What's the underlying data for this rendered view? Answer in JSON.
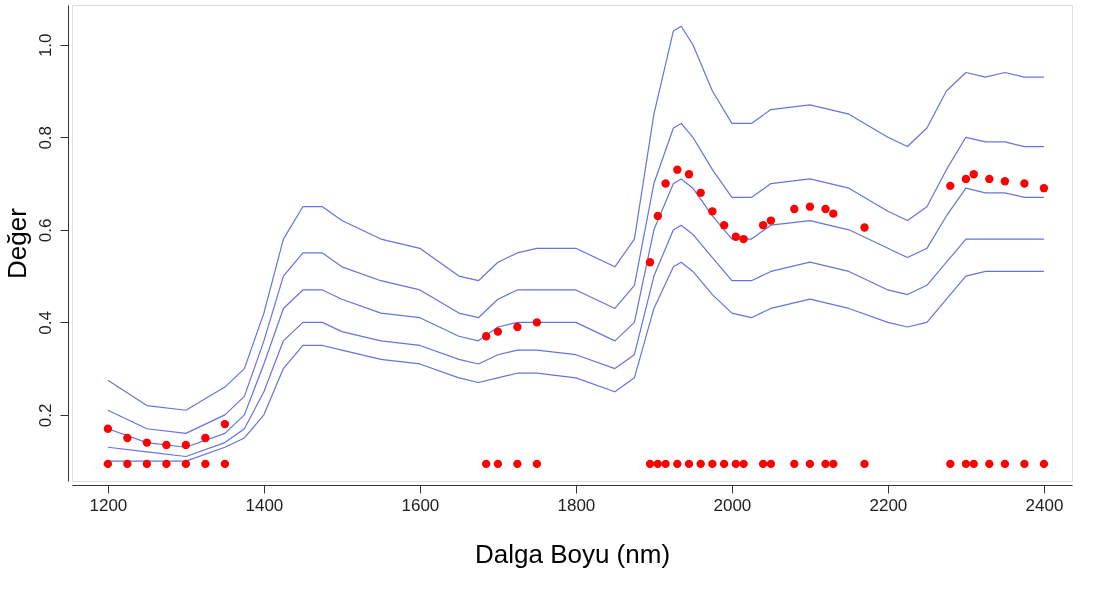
{
  "chart_data": {
    "type": "line",
    "xlabel": "Dalga Boyu (nm)",
    "ylabel": "Değer",
    "xlim": [
      1154,
      2436
    ],
    "ylim": [
      0.057,
      1.086
    ],
    "xticks": [
      1200,
      1400,
      1600,
      1800,
      2000,
      2200,
      2400
    ],
    "yticks": [
      0.2,
      0.4,
      0.6,
      0.8,
      {
        "value": 1.0,
        "label": "1.0"
      }
    ],
    "grid": false,
    "x": [
      1200,
      1250,
      1300,
      1350,
      1375,
      1400,
      1425,
      1450,
      1475,
      1500,
      1550,
      1600,
      1650,
      1675,
      1700,
      1725,
      1750,
      1800,
      1850,
      1875,
      1900,
      1925,
      1935,
      1950,
      1975,
      2000,
      2025,
      2050,
      2100,
      2150,
      2200,
      2225,
      2250,
      2275,
      2300,
      2325,
      2350,
      2375,
      2400
    ],
    "series": [
      {
        "color": "#4a5bd8",
        "values": [
          0.275,
          0.22,
          0.21,
          0.26,
          0.3,
          0.42,
          0.58,
          0.65,
          0.65,
          0.62,
          0.58,
          0.56,
          0.5,
          0.49,
          0.53,
          0.55,
          0.56,
          0.56,
          0.52,
          0.58,
          0.85,
          1.03,
          1.04,
          1.0,
          0.9,
          0.83,
          0.83,
          0.86,
          0.87,
          0.85,
          0.8,
          0.78,
          0.82,
          0.9,
          0.94,
          0.93,
          0.94,
          0.93,
          0.93
        ]
      },
      {
        "color": "#4a5bd8",
        "values": [
          0.21,
          0.17,
          0.16,
          0.2,
          0.24,
          0.36,
          0.5,
          0.55,
          0.55,
          0.52,
          0.49,
          0.47,
          0.42,
          0.41,
          0.45,
          0.47,
          0.47,
          0.47,
          0.43,
          0.48,
          0.7,
          0.82,
          0.83,
          0.8,
          0.73,
          0.67,
          0.67,
          0.7,
          0.71,
          0.69,
          0.64,
          0.62,
          0.65,
          0.73,
          0.8,
          0.79,
          0.79,
          0.78,
          0.78
        ]
      },
      {
        "color": "#4a5bd8",
        "values": [
          0.17,
          0.14,
          0.13,
          0.16,
          0.2,
          0.31,
          0.43,
          0.47,
          0.47,
          0.45,
          0.42,
          0.41,
          0.37,
          0.36,
          0.39,
          0.4,
          0.4,
          0.4,
          0.36,
          0.4,
          0.6,
          0.7,
          0.71,
          0.69,
          0.63,
          0.58,
          0.58,
          0.61,
          0.62,
          0.6,
          0.56,
          0.54,
          0.56,
          0.63,
          0.69,
          0.68,
          0.68,
          0.67,
          0.67
        ]
      },
      {
        "color": "#4a5bd8",
        "values": [
          0.13,
          0.12,
          0.11,
          0.14,
          0.17,
          0.25,
          0.36,
          0.4,
          0.4,
          0.38,
          0.36,
          0.35,
          0.32,
          0.31,
          0.33,
          0.34,
          0.34,
          0.33,
          0.3,
          0.33,
          0.5,
          0.6,
          0.61,
          0.59,
          0.54,
          0.49,
          0.49,
          0.51,
          0.53,
          0.51,
          0.47,
          0.46,
          0.48,
          0.53,
          0.58,
          0.58,
          0.58,
          0.58,
          0.58
        ]
      },
      {
        "color": "#4a5bd8",
        "values": [
          0.1,
          0.1,
          0.1,
          0.13,
          0.15,
          0.2,
          0.3,
          0.35,
          0.35,
          0.34,
          0.32,
          0.31,
          0.28,
          0.27,
          0.28,
          0.29,
          0.29,
          0.28,
          0.25,
          0.28,
          0.43,
          0.52,
          0.53,
          0.51,
          0.46,
          0.42,
          0.41,
          0.43,
          0.45,
          0.43,
          0.4,
          0.39,
          0.4,
          0.45,
          0.5,
          0.51,
          0.51,
          0.51,
          0.51
        ]
      },
      {
        "type": "scatter",
        "color": "#ff0000",
        "x": [
          1200,
          1225,
          1250,
          1275,
          1300,
          1325,
          1350,
          1685,
          1700,
          1725,
          1750,
          1895,
          1905,
          1915,
          1930,
          1945,
          1960,
          1975,
          1990,
          2005,
          2015,
          2040,
          2050,
          2080,
          2100,
          2120,
          2130,
          2170,
          2280,
          2300,
          2310,
          2330,
          2350,
          2375,
          2400
        ],
        "values": [
          0.17,
          0.15,
          0.14,
          0.135,
          0.135,
          0.15,
          0.18,
          0.37,
          0.38,
          0.39,
          0.4,
          0.53,
          0.63,
          0.7,
          0.73,
          0.72,
          0.68,
          0.64,
          0.61,
          0.585,
          0.58,
          0.61,
          0.62,
          0.645,
          0.65,
          0.645,
          0.635,
          0.605,
          0.695,
          0.71,
          0.72,
          0.71,
          0.705,
          0.7,
          0.69
        ]
      },
      {
        "type": "scatter",
        "color": "#ff0000",
        "x": [
          1200,
          1225,
          1250,
          1275,
          1300,
          1325,
          1350,
          1685,
          1700,
          1725,
          1750,
          1895,
          1905,
          1915,
          1930,
          1945,
          1960,
          1975,
          1990,
          2005,
          2015,
          2040,
          2050,
          2080,
          2100,
          2120,
          2130,
          2170,
          2280,
          2300,
          2310,
          2330,
          2350,
          2375,
          2400
        ],
        "values": [
          0.094,
          0.094,
          0.094,
          0.094,
          0.094,
          0.094,
          0.094,
          0.094,
          0.094,
          0.094,
          0.094,
          0.094,
          0.094,
          0.094,
          0.094,
          0.094,
          0.094,
          0.094,
          0.094,
          0.094,
          0.094,
          0.094,
          0.094,
          0.094,
          0.094,
          0.094,
          0.094,
          0.094,
          0.094,
          0.094,
          0.094,
          0.094,
          0.094,
          0.094,
          0.094
        ]
      }
    ]
  }
}
